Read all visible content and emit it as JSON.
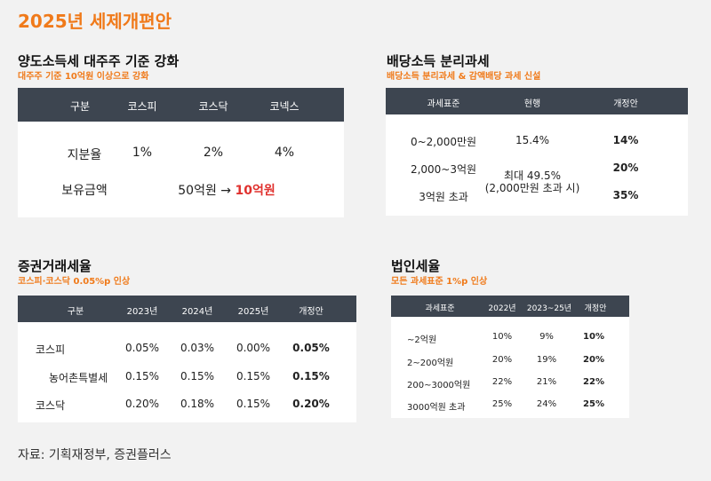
{
  "title": "2025년 세제개편안",
  "major_shareholder": {
    "title": "양도소득세 대주주 기준 강화",
    "subtitle": "대주주 기준 10억원 이상으로 강화",
    "headers": [
      "구분",
      "코스피",
      "코스닥",
      "코넥스"
    ],
    "stake_label": "지분율",
    "stake_values": [
      "1%",
      "2%",
      "4%"
    ],
    "amount_label": "보유금액",
    "amount_before": "50억원 →",
    "amount_after": "10억원"
  },
  "dividend": {
    "title": "배당소득 분리과세",
    "subtitle": "배당소득 분리과세 & 감액배당 과세 신설",
    "headers": [
      "과세표준",
      "현행",
      "개정안"
    ],
    "rows": [
      {
        "bracket": "0~2,000만원",
        "current": "15.4%",
        "proposed": "14%"
      },
      {
        "bracket": "2,000~3억원",
        "proposed": "20%"
      },
      {
        "bracket": "3억원 초과",
        "proposed": "35%"
      }
    ],
    "current_merged_line1": "최대 49.5%",
    "current_merged_line2": "(2,000만원 초과 시)"
  },
  "transaction_tax": {
    "title": "증권거래세율",
    "subtitle": "코스피·코스닥 0.05%p 인상",
    "headers": [
      "구분",
      "2023년",
      "2024년",
      "2025년",
      "개정안"
    ],
    "rows": [
      {
        "label": "코스피",
        "values": [
          "0.05%",
          "0.03%",
          "0.00%",
          "0.05%"
        ]
      },
      {
        "label": "농어촌특별세",
        "values": [
          "0.15%",
          "0.15%",
          "0.15%",
          "0.15%"
        ]
      },
      {
        "label": "코스닥",
        "values": [
          "0.20%",
          "0.18%",
          "0.15%",
          "0.20%"
        ]
      }
    ]
  },
  "corporate_tax": {
    "title": "법인세율",
    "subtitle": "모든 과세표준 1%p 인상",
    "headers": [
      "과세표준",
      "2022년",
      "2023~25년",
      "개정안"
    ],
    "rows": [
      {
        "bracket": "~2억원",
        "values": [
          "10%",
          "9%",
          "10%"
        ]
      },
      {
        "bracket": "2~200억원",
        "values": [
          "20%",
          "19%",
          "20%"
        ]
      },
      {
        "bracket": "200~3000억원",
        "values": [
          "22%",
          "21%",
          "22%"
        ]
      },
      {
        "bracket": "3000억원 초과",
        "values": [
          "25%",
          "24%",
          "25%"
        ]
      }
    ]
  },
  "source": "자료: 기획재정부, 증권플러스",
  "colors": {
    "accent": "#f07a1a",
    "header_bg": "#3d4550",
    "highlight": "#e0312e"
  }
}
